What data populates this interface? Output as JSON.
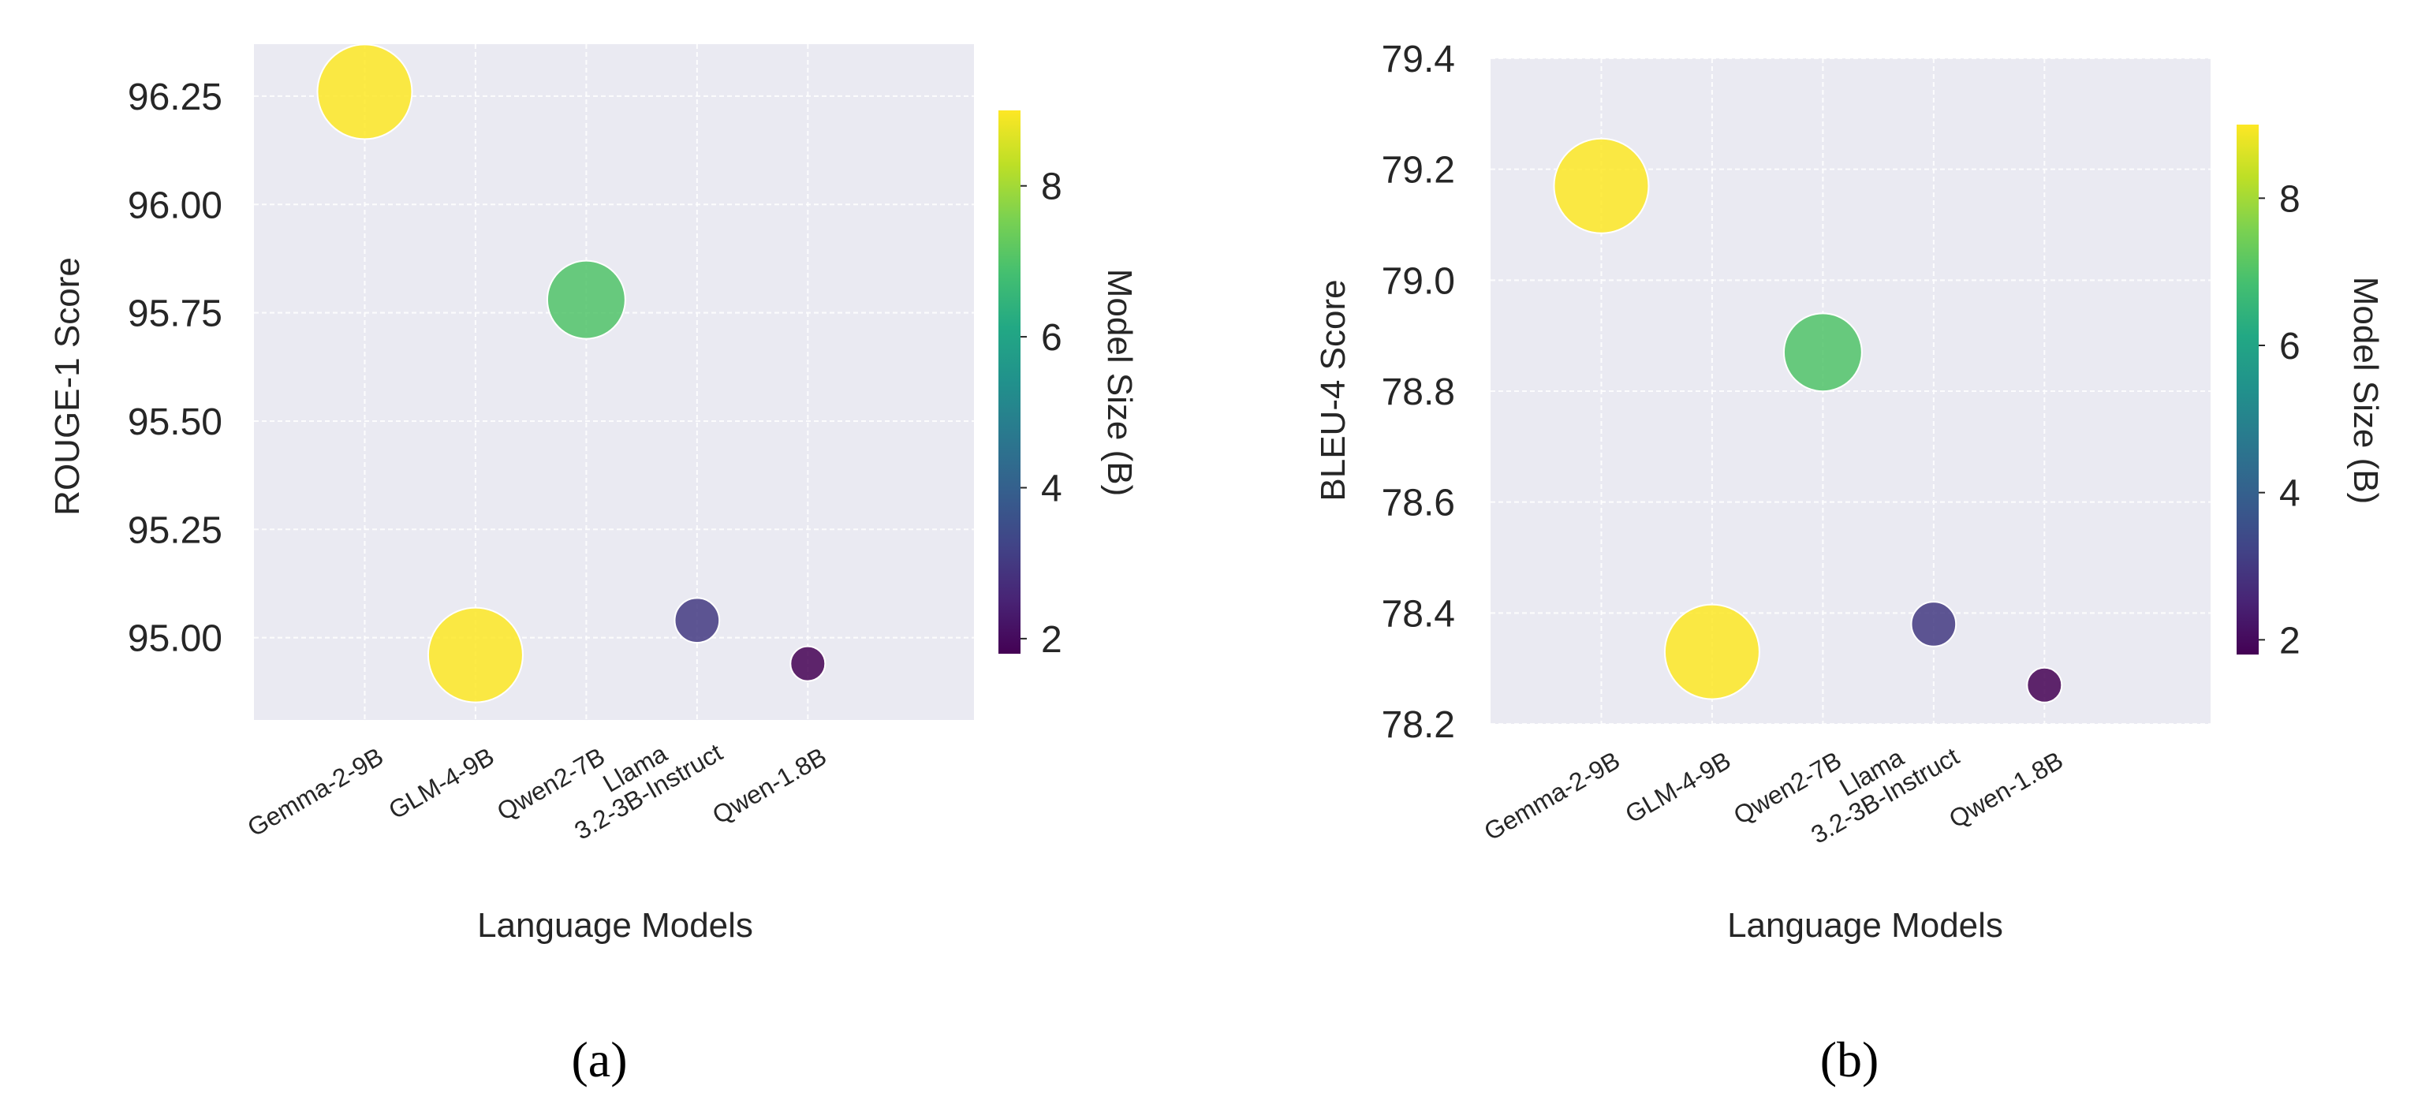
{
  "colors": {
    "plot_bg": "#eaeaf2",
    "grid": "#ffffff",
    "text": "#262626",
    "colorscale": "viridis"
  },
  "chart_data": [
    {
      "type": "scatter",
      "panel_label": "(a)",
      "xlabel": "Language Models",
      "ylabel": "ROUGE-1 Score",
      "colorbar_label": "Model Size (B)",
      "colorbar_range": [
        1.8,
        9
      ],
      "colorbar_ticks": [
        "2",
        "4",
        "6",
        "8"
      ],
      "yticks": [
        "95.00",
        "95.25",
        "95.50",
        "95.75",
        "96.00",
        "96.25"
      ],
      "ylim": [
        94.81,
        96.37
      ],
      "grid": true,
      "categories": [
        {
          "tick": [
            "Gemma-2-9B"
          ],
          "value": 96.26,
          "size_b": 9
        },
        {
          "tick": [
            "GLM-4-9B"
          ],
          "value": 94.96,
          "size_b": 9
        },
        {
          "tick": [
            "Qwen2-7B"
          ],
          "value": 95.78,
          "size_b": 7
        },
        {
          "tick": [
            "Llama",
            "3.2-3B-Instruct"
          ],
          "value": 95.04,
          "size_b": 3
        },
        {
          "tick": [
            "Qwen-1.8B"
          ],
          "value": 94.94,
          "size_b": 1.8
        }
      ]
    },
    {
      "type": "scatter",
      "panel_label": "(b)",
      "xlabel": "Language Models",
      "ylabel": "BLEU-4 Score",
      "colorbar_label": "Model Size (B)",
      "colorbar_range": [
        1.8,
        9
      ],
      "colorbar_ticks": [
        "2",
        "4",
        "6",
        "8"
      ],
      "yticks": [
        "78.2",
        "78.4",
        "78.6",
        "78.8",
        "79.0",
        "79.2",
        "79.4"
      ],
      "ylim": [
        78.2,
        79.4
      ],
      "grid": true,
      "categories": [
        {
          "tick": [
            "Gemma-2-9B"
          ],
          "value": 79.17,
          "size_b": 9
        },
        {
          "tick": [
            "GLM-4-9B"
          ],
          "value": 78.33,
          "size_b": 9
        },
        {
          "tick": [
            "Qwen2-7B"
          ],
          "value": 78.87,
          "size_b": 7
        },
        {
          "tick": [
            "Llama",
            "3.2-3B-Instruct"
          ],
          "value": 78.38,
          "size_b": 3
        },
        {
          "tick": [
            "Qwen-1.8B"
          ],
          "value": 78.27,
          "size_b": 1.8
        }
      ]
    }
  ]
}
